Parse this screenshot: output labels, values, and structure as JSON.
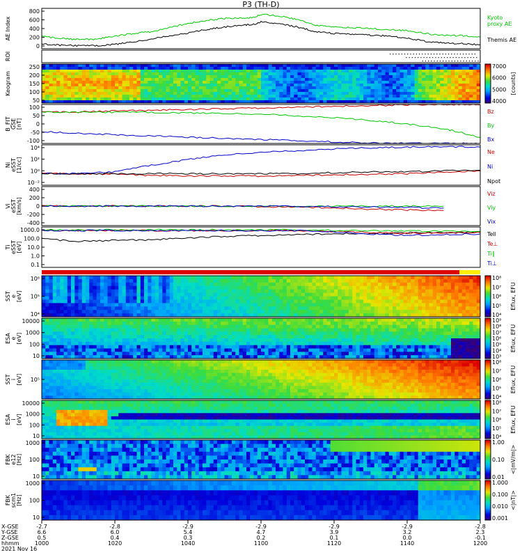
{
  "title": "P3 (TH-D)",
  "date_label": "2021 Nov 16",
  "time_axis": {
    "ticks": [
      "1000",
      "1020",
      "1040",
      "1100",
      "1120",
      "1140",
      "1200"
    ],
    "row_labels": [
      "X-GSE",
      "Y-GSE",
      "Z-GSE",
      "hhmm"
    ],
    "rows": [
      [
        "-2.7",
        "-2.8",
        "-2.9",
        "-2.9",
        "-2.9",
        "-2.9",
        "-2.8"
      ],
      [
        "6.6",
        "6.0",
        "5.4",
        "4.7",
        "3.9",
        "3.2",
        "2.3"
      ],
      [
        "0.5",
        "0.4",
        "0.3",
        "0.2",
        "0.1",
        "0.0",
        "-0.1"
      ]
    ]
  },
  "colors": {
    "green": "#00c800",
    "red": "#c80000",
    "blue": "#0000c8",
    "black": "#000000"
  },
  "chart_data": [
    {
      "type": "line",
      "panel": "ae",
      "ylabel": "AE Index",
      "ylim": [
        0,
        800
      ],
      "yticks": [
        "800",
        "600",
        "400",
        "200",
        "0"
      ],
      "x": [
        1000,
        1005,
        1010,
        1015,
        1020,
        1025,
        1030,
        1035,
        1040,
        1045,
        1050,
        1055,
        1058,
        1100,
        1105,
        1110,
        1115,
        1120,
        1125,
        1130,
        1135,
        1140,
        1145,
        1150,
        1155,
        1200
      ],
      "series": [
        {
          "name": "Kyoto proxy AE",
          "color": "#00c800",
          "values": [
            240,
            210,
            180,
            190,
            250,
            300,
            340,
            420,
            500,
            560,
            600,
            610,
            620,
            680,
            650,
            580,
            470,
            430,
            420,
            400,
            380,
            360,
            300,
            260,
            260,
            230
          ]
        },
        {
          "name": "Themis AE",
          "color": "#000000",
          "values": [
            90,
            70,
            60,
            60,
            90,
            140,
            190,
            260,
            310,
            380,
            430,
            470,
            480,
            530,
            500,
            430,
            340,
            300,
            290,
            270,
            250,
            210,
            150,
            110,
            100,
            80
          ]
        }
      ],
      "legend": [
        "Kyoto",
        "proxy AE",
        "Themis AE"
      ]
    },
    {
      "type": "heatmap",
      "panel": "roi",
      "ylabel": "ROI"
    },
    {
      "type": "heatmap",
      "panel": "keogram",
      "ylabel": "Keogram",
      "yticks": [
        "250",
        "200",
        "150",
        "100",
        "50"
      ],
      "colorbar": {
        "ticks": [
          "7000",
          "6000",
          "5000",
          "4000"
        ],
        "label": "[counts]"
      }
    },
    {
      "type": "line",
      "panel": "bfield",
      "ylabel": [
        "B_FIT",
        "GSE",
        "[nT]"
      ],
      "yticks": [
        "100",
        "50",
        "0",
        "-50",
        "-100"
      ],
      "ylim": [
        -100,
        100
      ],
      "x": [
        1000,
        1010,
        1020,
        1030,
        1040,
        1050,
        1100,
        1110,
        1120,
        1130,
        1140,
        1150,
        1155,
        1200
      ],
      "series": [
        {
          "name": "Bz",
          "color": "#c80000",
          "values": [
            60,
            62,
            66,
            70,
            74,
            78,
            82,
            86,
            90,
            94,
            98,
            100,
            100,
            100
          ]
        },
        {
          "name": "By",
          "color": "#00c800",
          "values": [
            60,
            60,
            60,
            59,
            57,
            55,
            50,
            42,
            32,
            18,
            0,
            -25,
            -45,
            -70
          ]
        },
        {
          "name": "Bx",
          "color": "#0000c8",
          "values": [
            -40,
            -48,
            -55,
            -62,
            -68,
            -74,
            -80,
            -86,
            -92,
            -98,
            -100,
            -100,
            -100,
            -100
          ]
        }
      ],
      "legend": [
        "Bz",
        "By",
        "Bx"
      ]
    },
    {
      "type": "line",
      "panel": "density",
      "ylabel": [
        "Ni",
        "eSST",
        "[1/cc]"
      ],
      "yticks": [
        "10⁴",
        "10²",
        "10⁰",
        "10⁻²"
      ],
      "log_scale": true,
      "x": [
        1000,
        1010,
        1020,
        1030,
        1040,
        1050,
        1100,
        1110,
        1120,
        1130,
        1140,
        1150,
        1200
      ],
      "series": [
        {
          "name": "Ne",
          "color": "#c80000",
          "values": [
            1,
            1,
            0.8,
            0.5,
            0.4,
            0.4,
            0.4,
            0.5,
            0.6,
            0.8,
            1,
            2,
            3
          ]
        },
        {
          "name": "Ni",
          "color": "#0000c8",
          "values": [
            1,
            1,
            2,
            30,
            300,
            2000,
            5000,
            10000,
            20000,
            30000,
            40000,
            50000,
            40000
          ]
        },
        {
          "name": "Npot",
          "color": "#000000",
          "values": [
            1,
            1,
            1,
            1,
            1,
            1,
            1,
            1,
            1.5,
            2,
            2,
            3,
            4
          ]
        }
      ],
      "legend": [
        "Ne",
        "Ni",
        "Npot"
      ]
    },
    {
      "type": "line",
      "panel": "velocity",
      "ylabel": [
        "Vi",
        "eSST",
        "[km/s]"
      ],
      "yticks": [
        "400",
        "200",
        "0",
        "-200",
        "-400"
      ],
      "ylim": [
        -400,
        400
      ],
      "x": [
        1000,
        1010,
        1020,
        1030,
        1040,
        1050,
        1100,
        1110,
        1120,
        1130,
        1140,
        1150
      ],
      "series": [
        {
          "name": "Viz",
          "color": "#c80000",
          "values": [
            0,
            0,
            0,
            0,
            0,
            0,
            -10,
            -20,
            -40,
            -60,
            -80,
            -90
          ]
        },
        {
          "name": "Viy",
          "color": "#00c800",
          "values": [
            0,
            0,
            0,
            0,
            0,
            0,
            0,
            0,
            0,
            0,
            0,
            0
          ]
        },
        {
          "name": "Vix",
          "color": "#0000c8",
          "values": [
            0,
            0,
            0,
            0,
            0,
            0,
            0,
            -5,
            -10,
            -20,
            -30,
            -40
          ]
        }
      ],
      "legend": [
        "Viz",
        "Viy",
        "Vix"
      ]
    },
    {
      "type": "line",
      "panel": "temperature",
      "ylabel": [
        "Ti",
        "eSST",
        "[eV]"
      ],
      "yticks": [
        "1000.0",
        "100.0",
        "10.0",
        "1.0",
        "0.1"
      ],
      "log_scale": true,
      "x": [
        1000,
        1010,
        1020,
        1030,
        1040,
        1050,
        1100,
        1110,
        1120,
        1130,
        1140,
        1150,
        1200
      ],
      "series": [
        {
          "name": "Tell",
          "color": "#000000",
          "values": [
            150,
            80,
            100,
            120,
            200,
            300,
            400,
            500,
            600,
            700,
            800,
            900,
            1000
          ]
        },
        {
          "name": "Te⊥",
          "color": "#c80000",
          "values": [
            1500,
            1500,
            1500,
            1500,
            1500,
            1500,
            1500,
            1500,
            1200,
            900,
            700,
            800,
            900
          ]
        },
        {
          "name": "Ti∥",
          "color": "#00c800",
          "values": [
            1800,
            1800,
            1800,
            1800,
            1800,
            1800,
            1800,
            1800,
            1600,
            1400,
            1300,
            1200,
            1200
          ]
        },
        {
          "name": "Ti⊥",
          "color": "#0000c8",
          "values": [
            1500,
            1500,
            1500,
            1500,
            1500,
            1500,
            1500,
            1500,
            1100,
            600,
            400,
            500,
            600
          ]
        }
      ],
      "legend": [
        "Tell",
        "Te⊥",
        "Ti∥",
        "Ti⊥"
      ]
    },
    {
      "type": "heatmap",
      "panel": "sst_e",
      "ylabel": [
        "SST",
        "e",
        "[eV]"
      ],
      "yticks": [
        "10⁶",
        "10⁵",
        "10⁴"
      ],
      "colorbar": {
        "ticks": [
          "10⁸",
          "10⁷",
          "10⁶",
          "10⁵",
          "10⁴"
        ],
        "label": "Eflux, EFU"
      }
    },
    {
      "type": "heatmap",
      "panel": "esa_e",
      "ylabel": [
        "ESA",
        "e",
        "[eV]"
      ],
      "yticks": [
        "10000",
        "1000",
        "100",
        "10"
      ],
      "colorbar": {
        "ticks": [
          "10⁹",
          "10⁸",
          "10⁷",
          "10⁶",
          "10⁵",
          "10⁴",
          "10³"
        ],
        "label": "Eflux, EFU"
      }
    },
    {
      "type": "heatmap",
      "panel": "sst_i",
      "ylabel": [
        "SST",
        "i",
        "[eV]"
      ],
      "yticks": [
        "10⁵"
      ],
      "colorbar": {
        "ticks": [
          "10⁸",
          "10⁷",
          "10⁶",
          "10⁵",
          "10⁴"
        ],
        "label": "Eflux, EFU"
      }
    },
    {
      "type": "heatmap",
      "panel": "esa_i",
      "ylabel": [
        "ESA",
        "i",
        "[eV]"
      ],
      "yticks": [
        "10000",
        "1000",
        "100",
        "10"
      ],
      "colorbar": {
        "ticks": [
          "10⁸",
          "10⁷",
          "10⁶",
          "10⁵",
          "10⁴"
        ],
        "label": "Eflux, EFU"
      }
    },
    {
      "type": "heatmap",
      "panel": "fbk_e",
      "ylabel": [
        "FBK",
        "e12",
        "[Hz]"
      ],
      "yticks": [
        "1000",
        "100",
        "10"
      ],
      "colorbar": {
        "ticks": [
          "1.00",
          "0.10",
          "0.01"
        ],
        "label": "<|mV/m|>"
      }
    },
    {
      "type": "heatmap",
      "panel": "fbk_b",
      "ylabel": [
        "FBK",
        "scm1",
        "[Hz]"
      ],
      "yticks": [
        "1000",
        "100",
        "10"
      ],
      "colorbar": {
        "ticks": [
          "1.000",
          "0.100",
          "0.010",
          "0.001"
        ],
        "label": "<|nT|>"
      }
    }
  ]
}
